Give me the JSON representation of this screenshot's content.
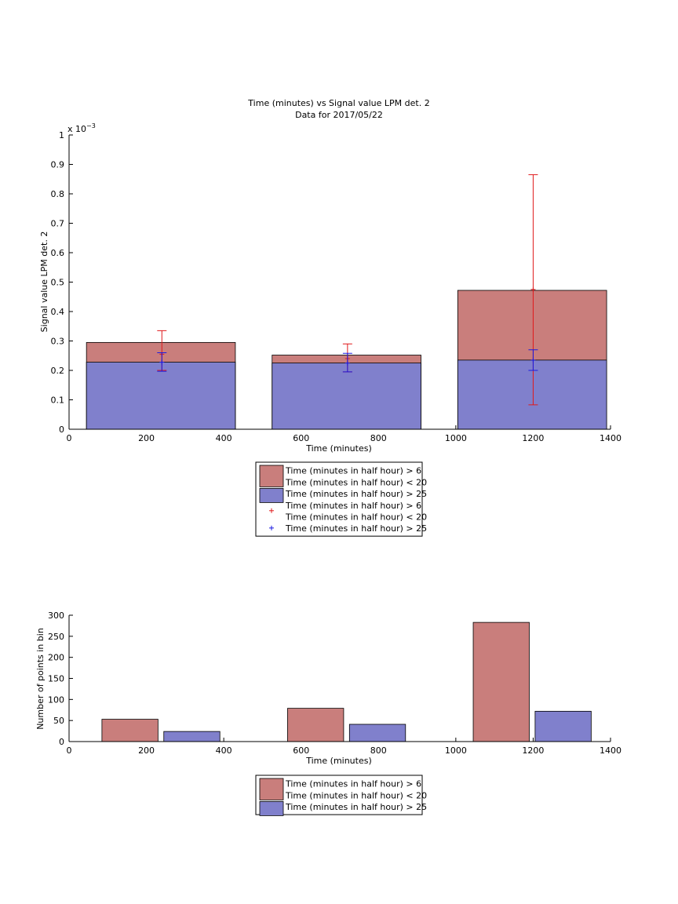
{
  "chart_data": [
    {
      "type": "bar",
      "title": "Time (minutes) vs Signal value LPM det. 2",
      "subtitle": "Data for 2017/05/22",
      "xlabel": "Time (minutes)",
      "ylabel": "Signal value LPM det. 2",
      "y_multiplier_label": "x 10",
      "y_multiplier_exponent": "−3",
      "xlim": [
        0,
        1400
      ],
      "ylim": [
        0,
        1
      ],
      "x_ticks": [
        "0",
        "200",
        "400",
        "600",
        "800",
        "1000",
        "1200",
        "1400"
      ],
      "y_ticks": [
        "0",
        "0.1",
        "0.2",
        "0.3",
        "0.4",
        "0.5",
        "0.6",
        "0.7",
        "0.8",
        "0.9",
        "1"
      ],
      "bins": [
        {
          "x0": 45,
          "x1": 430,
          "center": 240
        },
        {
          "x0": 525,
          "x1": 910,
          "center": 720
        },
        {
          "x0": 1005,
          "x1": 1390,
          "center": 1200
        }
      ],
      "series": [
        {
          "name": "Time (minutes in half hour) > 6\nTime (minutes in half hour) < 20",
          "color": "#c97e7c",
          "values": [
            0.295,
            0.252,
            0.472
          ]
        },
        {
          "name": "Time (minutes in half hour) > 25",
          "color": "#8080cc",
          "values": [
            0.228,
            0.225,
            0.235
          ]
        }
      ],
      "error_bars": [
        {
          "name": "Time (minutes in half hour) > 6\nTime (minutes in half hour) < 20",
          "color": "#e0191b",
          "x": [
            240,
            720,
            1200
          ],
          "y": [
            0.255,
            0.24,
            0.475
          ],
          "lower": [
            0.2,
            0.195,
            0.083
          ],
          "upper": [
            0.335,
            0.29,
            0.865
          ]
        },
        {
          "name": "Time (minutes in half hour) > 25",
          "color": "#1a1ae0",
          "x": [
            240,
            720,
            1200
          ],
          "y": [
            0.228,
            0.225,
            0.235
          ],
          "lower": [
            0.197,
            0.195,
            0.2
          ],
          "upper": [
            0.26,
            0.258,
            0.27
          ]
        }
      ],
      "legend": {
        "position": "below",
        "entries": [
          {
            "kind": "patch",
            "color": "#c97e7c",
            "lines": [
              "Time (minutes in half hour) > 6",
              "Time (minutes in half hour) < 20"
            ]
          },
          {
            "kind": "patch",
            "color": "#8080cc",
            "lines": [
              "Time (minutes in half hour) > 25"
            ]
          },
          {
            "kind": "marker",
            "color": "#e0191b",
            "lines": [
              "Time (minutes in half hour) > 6",
              "Time (minutes in half hour) < 20"
            ]
          },
          {
            "kind": "marker",
            "color": "#1a1ae0",
            "lines": [
              "Time (minutes in half hour) > 25"
            ]
          }
        ]
      }
    },
    {
      "type": "bar",
      "xlabel": "Time (minutes)",
      "ylabel": "Number of points in bin",
      "xlim": [
        0,
        1400
      ],
      "ylim": [
        0,
        300
      ],
      "x_ticks": [
        "0",
        "200",
        "400",
        "600",
        "800",
        "1000",
        "1200",
        "1400"
      ],
      "y_ticks": [
        "0",
        "50",
        "100",
        "150",
        "200",
        "250",
        "300"
      ],
      "series": [
        {
          "name": "Time (minutes in half hour) > 6\nTime (minutes in half hour) < 20",
          "color": "#c97e7c",
          "bars": [
            {
              "x0": 85,
              "x1": 230,
              "value": 53
            },
            {
              "x0": 565,
              "x1": 710,
              "value": 79
            },
            {
              "x0": 1045,
              "x1": 1190,
              "value": 283
            }
          ]
        },
        {
          "name": "Time (minutes in half hour) > 25",
          "color": "#8080cc",
          "bars": [
            {
              "x0": 245,
              "x1": 390,
              "value": 24
            },
            {
              "x0": 725,
              "x1": 870,
              "value": 41
            },
            {
              "x0": 1205,
              "x1": 1350,
              "value": 72
            }
          ]
        }
      ],
      "legend": {
        "position": "below",
        "entries": [
          {
            "kind": "patch",
            "color": "#c97e7c",
            "lines": [
              "Time (minutes in half hour) > 6",
              "Time (minutes in half hour) < 20"
            ]
          },
          {
            "kind": "patch",
            "color": "#8080cc",
            "lines": [
              "Time (minutes in half hour) > 25"
            ]
          }
        ]
      }
    }
  ]
}
